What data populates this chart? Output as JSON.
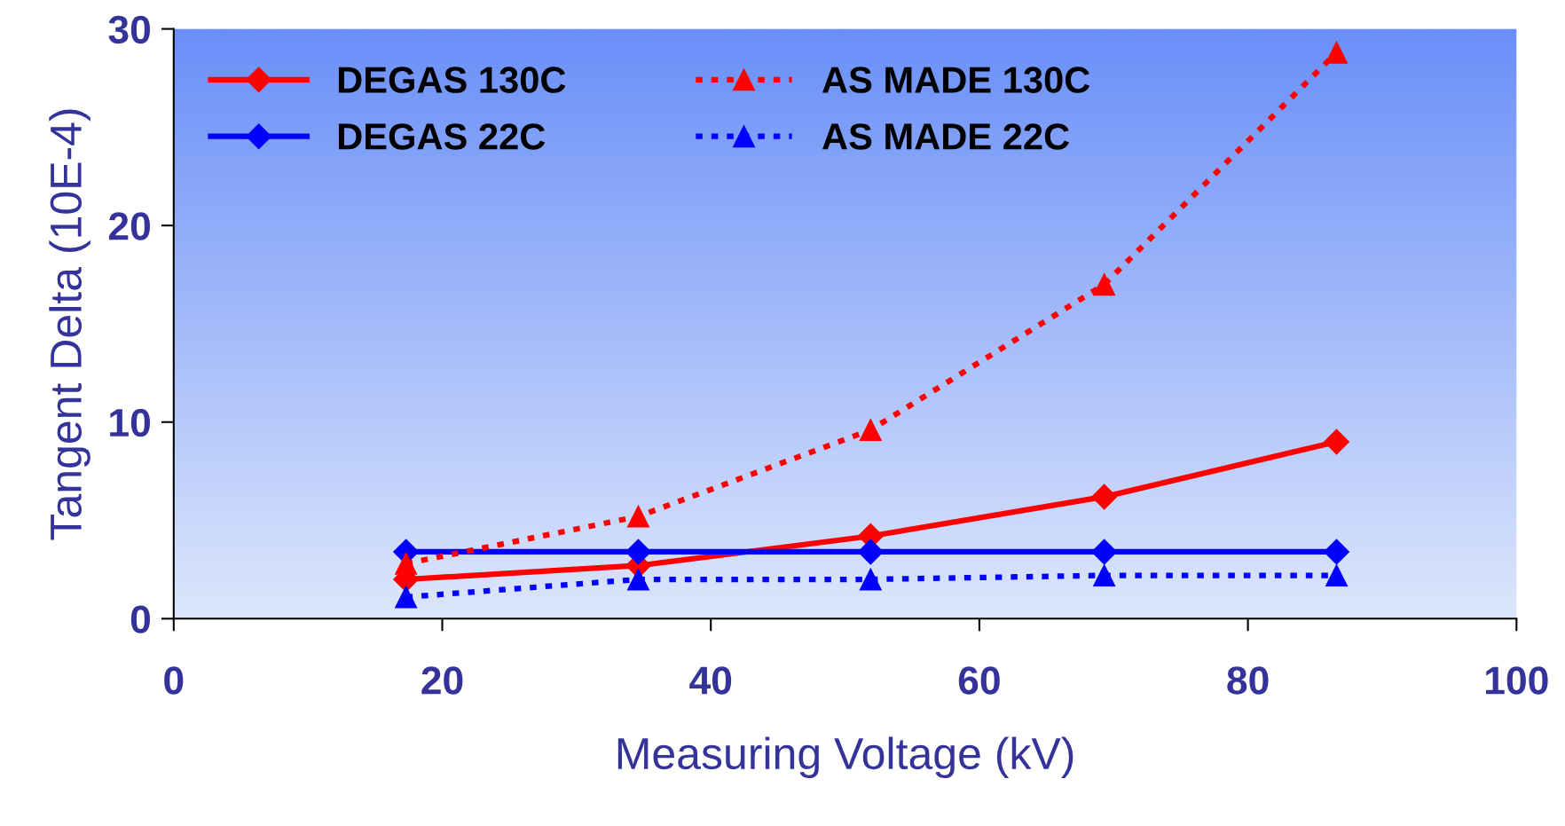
{
  "chart_data": {
    "type": "line",
    "xlabel": "Measuring Voltage (kV)",
    "ylabel": "Tangent Delta (10E-4)",
    "xlim": [
      0,
      100
    ],
    "xticks": [
      0,
      20,
      40,
      60,
      80,
      100
    ],
    "ylim": [
      0,
      30
    ],
    "yticks": [
      0,
      10,
      20,
      30
    ],
    "x": [
      17.3,
      34.6,
      51.9,
      69.3,
      86.6
    ],
    "legend": "top left",
    "grid": false,
    "series": [
      {
        "name": "DEGAS 130C",
        "color": "#ff0000",
        "marker": "diamond",
        "line_style": "solid",
        "values": [
          2.0,
          2.7,
          4.2,
          6.2,
          9.0
        ]
      },
      {
        "name": "DEGAS 22C",
        "color": "#0000ff",
        "marker": "diamond",
        "line_style": "solid",
        "values": [
          3.4,
          3.4,
          3.4,
          3.4,
          3.4
        ]
      },
      {
        "name": "AS MADE 130C",
        "color": "#ff0000",
        "marker": "triangle",
        "line_style": "dotted",
        "values": [
          2.8,
          5.2,
          9.6,
          17.0,
          28.8
        ]
      },
      {
        "name": "AS MADE 22C",
        "color": "#0000ff",
        "marker": "triangle",
        "line_style": "dotted",
        "values": [
          1.1,
          2.0,
          2.0,
          2.2,
          2.2
        ]
      }
    ]
  }
}
